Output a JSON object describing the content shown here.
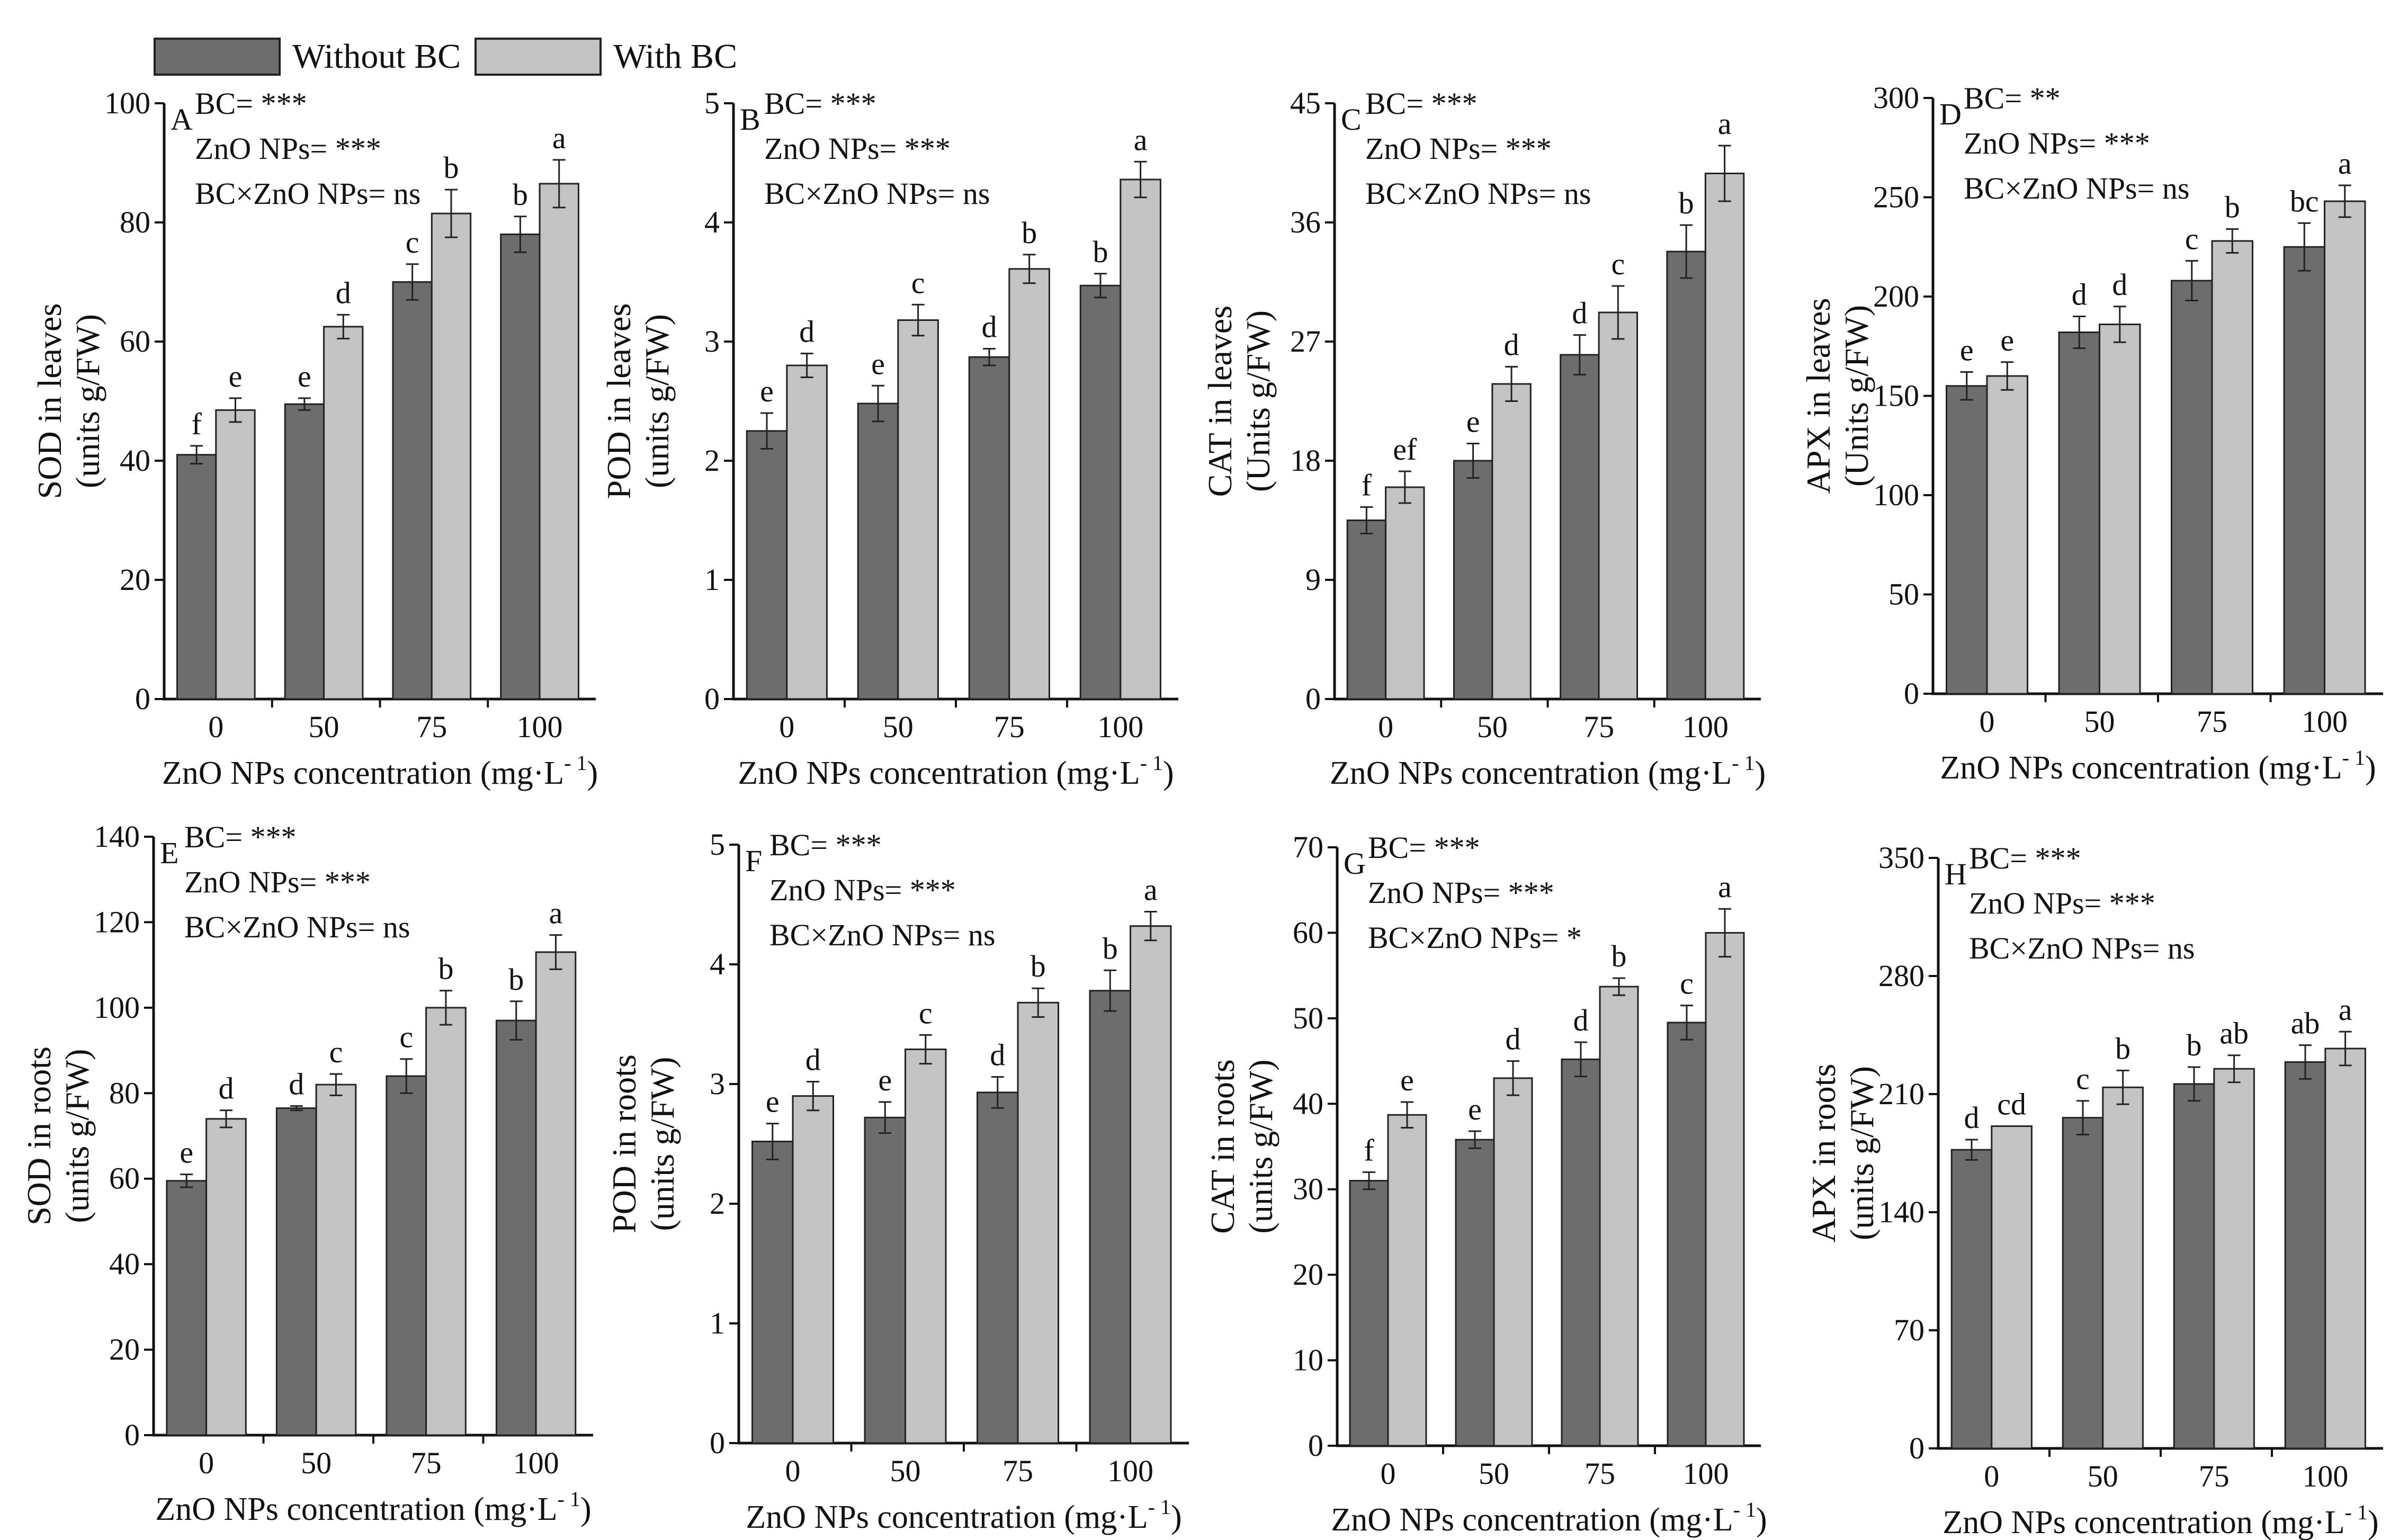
{
  "colors": {
    "without_bc": "#6d6d6d",
    "with_bc": "#c3c3c3",
    "axis": "#111111"
  },
  "legend": [
    {
      "label": "Without BC",
      "color": "#6d6d6d"
    },
    {
      "label": "With BC",
      "color": "#c3c3c3"
    }
  ],
  "chart_data": [
    {
      "id": "A",
      "type": "bar",
      "ylabel_line1": "SOD in leaves",
      "ylabel_line2": "(units g/FW)",
      "xlabel": "ZnO NPs concentration (mg·L",
      "xlabel_sup": "- 1",
      "xlabel_end": ")",
      "categories": [
        "0",
        "50",
        "75",
        "100"
      ],
      "ylim": [
        0,
        100
      ],
      "yticks": [
        "0",
        "20",
        "40",
        "60",
        "80",
        "100"
      ],
      "series": [
        {
          "name": "Without BC",
          "values": [
            41,
            49.5,
            70,
            78
          ],
          "errors": [
            1.5,
            1,
            3,
            3
          ],
          "letters": [
            "f",
            "e",
            "c",
            "b"
          ]
        },
        {
          "name": "With BC",
          "values": [
            48.5,
            62.5,
            81.5,
            86.5
          ],
          "errors": [
            2,
            2,
            4,
            4
          ],
          "letters": [
            "e",
            "d",
            "b",
            "a"
          ]
        }
      ],
      "stats": [
        "BC= ***",
        "ZnO NPs= ***",
        "BC×ZnO NPs= ns"
      ]
    },
    {
      "id": "B",
      "type": "bar",
      "ylabel_line1": "POD in leaves",
      "ylabel_line2": "(units g/FW)",
      "xlabel": "ZnO NPs concentration (mg·L",
      "xlabel_sup": "- 1",
      "xlabel_end": ")",
      "categories": [
        "0",
        "50",
        "75",
        "100"
      ],
      "ylim": [
        0,
        5
      ],
      "yticks": [
        "0",
        "1",
        "2",
        "3",
        "4",
        "5"
      ],
      "series": [
        {
          "name": "Without BC",
          "values": [
            2.25,
            2.48,
            2.87,
            3.47
          ],
          "errors": [
            0.15,
            0.15,
            0.07,
            0.1
          ],
          "letters": [
            "e",
            "e",
            "d",
            "b"
          ]
        },
        {
          "name": "With BC",
          "values": [
            2.8,
            3.18,
            3.61,
            4.36
          ],
          "errors": [
            0.1,
            0.13,
            0.12,
            0.15
          ],
          "letters": [
            "d",
            "c",
            "b",
            "a"
          ]
        }
      ],
      "stats": [
        "BC= ***",
        "ZnO NPs= ***",
        "BC×ZnO NPs= ns"
      ]
    },
    {
      "id": "C",
      "type": "bar",
      "ylabel_line1": "CAT in leaves",
      "ylabel_line2": "(Units g/FW)",
      "xlabel": "ZnO NPs concentration (mg·L",
      "xlabel_sup": "- 1",
      "xlabel_end": ")",
      "categories": [
        "0",
        "50",
        "75",
        "100"
      ],
      "ylim": [
        0,
        45
      ],
      "yticks": [
        "0",
        "9",
        "18",
        "27",
        "36",
        "45"
      ],
      "series": [
        {
          "name": "Without BC",
          "values": [
            13.5,
            18,
            26,
            33.8
          ],
          "errors": [
            1,
            1.3,
            1.5,
            2
          ],
          "letters": [
            "f",
            "e",
            "d",
            "b"
          ]
        },
        {
          "name": "With BC",
          "values": [
            16,
            23.8,
            29.2,
            39.7
          ],
          "errors": [
            1.2,
            1.3,
            2,
            2.1
          ],
          "letters": [
            "ef",
            "d",
            "c",
            "a"
          ]
        }
      ],
      "stats": [
        "BC= ***",
        "ZnO NPs= ***",
        "BC×ZnO NPs= ns"
      ]
    },
    {
      "id": "D",
      "type": "bar",
      "ylabel_line1": "APX in leaves",
      "ylabel_line2": "(Units g/FW)",
      "xlabel": "ZnO NPs concentration (mg·L",
      "xlabel_sup": "- 1",
      "xlabel_end": ")",
      "categories": [
        "0",
        "50",
        "75",
        "100"
      ],
      "ylim": [
        0,
        300
      ],
      "yticks": [
        "0",
        "50",
        "100",
        "150",
        "200",
        "250",
        "300"
      ],
      "series": [
        {
          "name": "Without BC",
          "values": [
            155,
            182,
            208,
            225
          ],
          "errors": [
            7,
            8,
            10,
            12
          ],
          "letters": [
            "e",
            "d",
            "c",
            "bc"
          ]
        },
        {
          "name": "With BC",
          "values": [
            160,
            186,
            228,
            248
          ],
          "errors": [
            7,
            9,
            6,
            8
          ],
          "letters": [
            "e",
            "d",
            "b",
            "a"
          ]
        }
      ],
      "stats": [
        "BC= **",
        "ZnO NPs= ***",
        "BC×ZnO NPs= ns"
      ]
    },
    {
      "id": "E",
      "type": "bar",
      "ylabel_line1": "SOD in roots",
      "ylabel_line2": "(units g/FW)",
      "xlabel": "ZnO NPs concentration (mg·L",
      "xlabel_sup": "- 1",
      "xlabel_end": ")",
      "categories": [
        "0",
        "50",
        "75",
        "100"
      ],
      "ylim": [
        0,
        140
      ],
      "yticks": [
        "0",
        "20",
        "40",
        "60",
        "80",
        "100",
        "120",
        "140"
      ],
      "series": [
        {
          "name": "Without BC",
          "values": [
            59.5,
            76.5,
            84,
            97
          ],
          "errors": [
            1.5,
            0.5,
            4,
            4.5
          ],
          "letters": [
            "e",
            "d",
            "c",
            "b"
          ]
        },
        {
          "name": "With BC",
          "values": [
            74,
            82,
            100,
            113
          ],
          "errors": [
            2,
            2.5,
            4,
            4
          ],
          "letters": [
            "d",
            "c",
            "b",
            "a"
          ]
        }
      ],
      "stats": [
        "BC= ***",
        "ZnO NPs= ***",
        "BC×ZnO NPs= ns"
      ]
    },
    {
      "id": "F",
      "type": "bar",
      "ylabel_line1": "POD in roots",
      "ylabel_line2": "(units g/FW)",
      "xlabel": "ZnO NPs concentration (mg·L",
      "xlabel_sup": "- 1",
      "xlabel_end": ")",
      "categories": [
        "0",
        "50",
        "75",
        "100"
      ],
      "ylim": [
        0,
        5
      ],
      "yticks": [
        "0",
        "1",
        "2",
        "3",
        "4",
        "5"
      ],
      "series": [
        {
          "name": "Without BC",
          "values": [
            2.52,
            2.72,
            2.93,
            3.78
          ],
          "errors": [
            0.15,
            0.13,
            0.13,
            0.17
          ],
          "letters": [
            "e",
            "e",
            "d",
            "b"
          ]
        },
        {
          "name": "With BC",
          "values": [
            2.9,
            3.29,
            3.68,
            4.32
          ],
          "errors": [
            0.12,
            0.12,
            0.12,
            0.12
          ],
          "letters": [
            "d",
            "c",
            "b",
            "a"
          ]
        }
      ],
      "stats": [
        "BC= ***",
        "ZnO NPs= ***",
        "BC×ZnO NPs= ns"
      ]
    },
    {
      "id": "G",
      "type": "bar",
      "ylabel_line1": "CAT in roots",
      "ylabel_line2": "(units g/FW)",
      "xlabel": "ZnO NPs concentration (mg·L",
      "xlabel_sup": "- 1",
      "xlabel_end": ")",
      "categories": [
        "0",
        "50",
        "75",
        "100"
      ],
      "ylim": [
        0,
        70
      ],
      "yticks": [
        "0",
        "10",
        "20",
        "30",
        "40",
        "50",
        "60",
        "70"
      ],
      "series": [
        {
          "name": "Without BC",
          "values": [
            31,
            35.8,
            45.2,
            49.5
          ],
          "errors": [
            1,
            1,
            2,
            2
          ],
          "letters": [
            "f",
            "e",
            "d",
            "c"
          ]
        },
        {
          "name": "With BC",
          "values": [
            38.7,
            43,
            53.7,
            60
          ],
          "errors": [
            1.5,
            2,
            1,
            2.8
          ],
          "letters": [
            "e",
            "d",
            "b",
            "a"
          ]
        }
      ],
      "stats": [
        "BC= ***",
        "ZnO NPs= ***",
        "BC×ZnO NPs= *"
      ]
    },
    {
      "id": "H",
      "type": "bar",
      "ylabel_line1": "APX in roots",
      "ylabel_line2": "(units g/FW)",
      "xlabel": "ZnO NPs concentration (mg·L",
      "xlabel_sup": "- 1",
      "xlabel_end": ")",
      "categories": [
        "0",
        "50",
        "75",
        "100"
      ],
      "ylim": [
        0,
        350
      ],
      "yticks": [
        "0",
        "70",
        "140",
        "210",
        "280",
        "350"
      ],
      "series": [
        {
          "name": "Without BC",
          "values": [
            177,
            196,
            216,
            229
          ],
          "errors": [
            6,
            10,
            10,
            10
          ],
          "letters": [
            "d",
            "c",
            "b",
            "ab"
          ]
        },
        {
          "name": "With BC",
          "values": [
            191,
            214,
            225,
            237
          ],
          "errors": [
            0,
            10,
            8,
            10
          ],
          "letters": [
            "cd",
            "b",
            "ab",
            "a"
          ]
        }
      ],
      "stats": [
        "BC= ***",
        "ZnO NPs= ***",
        "BC×ZnO NPs= ns"
      ]
    }
  ]
}
